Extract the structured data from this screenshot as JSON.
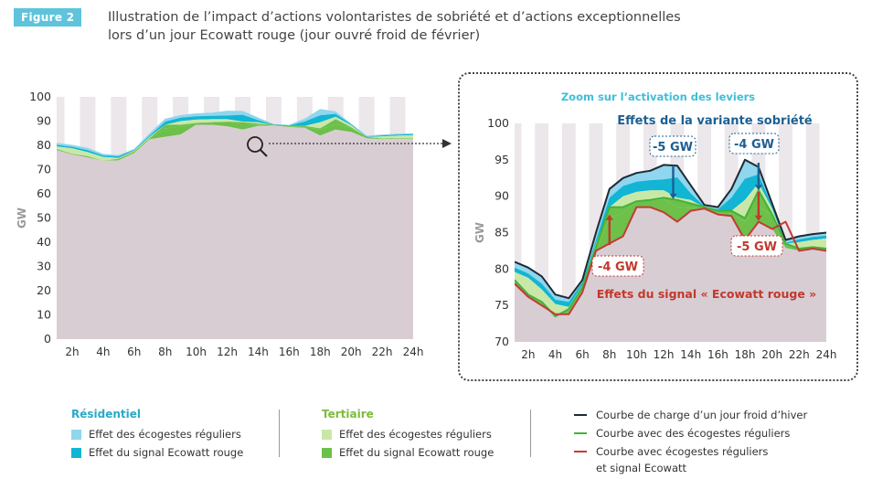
{
  "figure": {
    "badge": "Figure 2",
    "title_line1": "Illustration de l’impact d’actions volontaristes de sobriété et d’actions exceptionnelles",
    "title_line2": "lors d’un jour Ecowatt rouge (jour ouvré froid de février)"
  },
  "colors": {
    "base": "#d9cdd4",
    "stripe": "#ebe7ea",
    "res_eco": "#8fd6ee",
    "res_signal": "#12b5d3",
    "ter_eco": "#c9e8a8",
    "ter_signal": "#6dc04a",
    "line_black": "#1f2a33",
    "line_green": "#42b33a",
    "line_red": "#c43a35",
    "zoom_title": "#3dbfd9",
    "sobriete": "#1c5f92",
    "ecowatt": "#c0392b"
  },
  "chart_data": [
    {
      "type": "area",
      "ylabel": "GW",
      "ylim": [
        0,
        100
      ],
      "yticks": [
        0,
        10,
        20,
        30,
        40,
        50,
        60,
        70,
        80,
        90,
        100
      ],
      "x": [
        1,
        2,
        3,
        4,
        5,
        6,
        7,
        8,
        9,
        10,
        11,
        12,
        13,
        14,
        15,
        16,
        17,
        18,
        19,
        20,
        21,
        22,
        23,
        24
      ],
      "xtick_labels": [
        "2h",
        "4h",
        "6h",
        "8h",
        "10h",
        "12h",
        "14h",
        "16h",
        "18h",
        "20h",
        "22h",
        "24h"
      ],
      "series": [
        {
          "key": "black",
          "values": [
            81,
            80.2,
            79,
            76.5,
            76,
            78.5,
            85,
            91,
            92.5,
            93.2,
            93.5,
            94.3,
            94.2,
            91.5,
            88.8,
            88.5,
            91,
            95,
            94,
            89,
            84,
            84.5,
            84.8,
            85
          ]
        },
        {
          "key": "res_eco_top",
          "values": [
            80.2,
            79.4,
            78,
            75.8,
            75.5,
            78.2,
            84,
            89.8,
            91.4,
            92,
            92.2,
            92.3,
            92.6,
            90.4,
            88.6,
            88.2,
            89.8,
            92.4,
            93,
            88.7,
            83.6,
            84.1,
            84.4,
            84.6
          ]
        },
        {
          "key": "res_sig_top",
          "values": [
            79.6,
            78.8,
            77.2,
            75.2,
            74.8,
            77.8,
            83.5,
            88.5,
            90,
            90.6,
            90.8,
            90.8,
            89.8,
            89.5,
            88.3,
            88,
            88,
            89.5,
            91.8,
            88.3,
            83.3,
            83.7,
            84,
            84.2
          ]
        },
        {
          "key": "green",
          "values": [
            78.5,
            76.5,
            75.5,
            73.5,
            74.5,
            77.5,
            83,
            88.5,
            88.5,
            89.3,
            89.5,
            89.8,
            89.5,
            89,
            88.5,
            88,
            88,
            87,
            90.8,
            87.5,
            83.5,
            82.8,
            83,
            82.8
          ]
        },
        {
          "key": "ter_eco_top",
          "values": [
            78.3,
            76.4,
            75.4,
            73.6,
            74.1,
            77.1,
            82.6,
            87,
            87.7,
            89.2,
            89.4,
            89.6,
            88.5,
            88.4,
            88.2,
            87.7,
            87.6,
            86.5,
            88.7,
            87.3,
            82.9,
            82.5,
            82.7,
            82.6
          ]
        },
        {
          "key": "red",
          "values": [
            78,
            76.2,
            75,
            73.8,
            73.8,
            76.8,
            82.5,
            83.5,
            84.5,
            88.5,
            88.5,
            87.8,
            86.5,
            88,
            88.3,
            87.5,
            87.3,
            84,
            86.5,
            85.5,
            86.5,
            82.5,
            82.8,
            82.5
          ]
        }
      ]
    },
    {
      "type": "area",
      "title": "Zoom sur l’activation des leviers",
      "ylabel": "GW",
      "ylim": [
        70,
        100
      ],
      "yticks": [
        70,
        75,
        80,
        85,
        90,
        95,
        100
      ],
      "xtick_labels": [
        "2h",
        "4h",
        "6h",
        "8h",
        "10h",
        "12h",
        "14h",
        "16h",
        "18h",
        "20h",
        "22h",
        "24h"
      ],
      "annotations": {
        "sobriete": "Effets de la variante sobriété",
        "ecowatt": "Effets du signal « Ecowatt rouge »",
        "sob_a": "-5 GW",
        "sob_b": "-4 GW",
        "eco_a": "-4 GW",
        "eco_b": "-5 GW"
      }
    }
  ],
  "legend": {
    "residentiel": {
      "header": "Résidentiel",
      "items": [
        "Effet des écogestes réguliers",
        "Effet du signal Ecowatt rouge"
      ]
    },
    "tertiaire": {
      "header": "Tertiaire",
      "items": [
        "Effet des écogestes réguliers",
        "Effet du signal Ecowatt rouge"
      ]
    },
    "lines": {
      "items": [
        "Courbe de charge d’un jour froid d’hiver",
        "Courbe avec des écogestes réguliers",
        "Courbe avec écogestes réguliers",
        "et signal Ecowatt"
      ]
    }
  }
}
